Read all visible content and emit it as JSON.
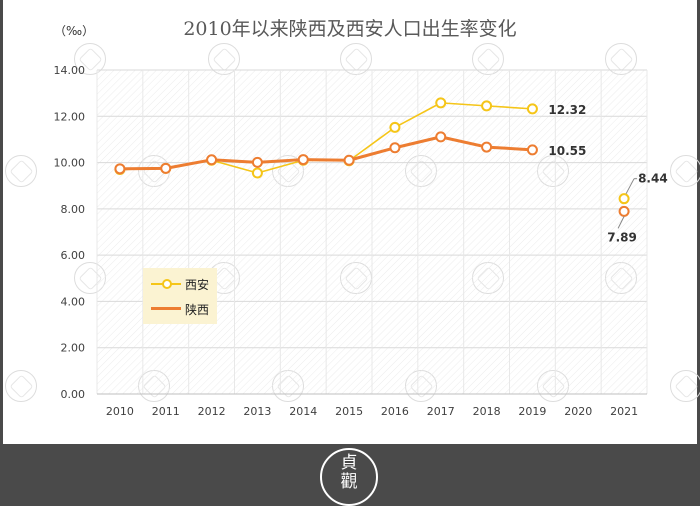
{
  "title": "2010年以来陕西及西安人口出生率变化",
  "unit": "（‰）",
  "logo_text": "貞\n觀",
  "chart_data": {
    "type": "line",
    "categories": [
      "2010",
      "2011",
      "2012",
      "2013",
      "2014",
      "2015",
      "2016",
      "2017",
      "2018",
      "2019",
      "2020",
      "2021"
    ],
    "ylim": [
      0,
      14
    ],
    "yticks": [
      "0.00",
      "2.00",
      "4.00",
      "6.00",
      "8.00",
      "10.00",
      "12.00",
      "14.00"
    ],
    "grid": true,
    "legend_position": "left-middle",
    "series": [
      {
        "name": "西安",
        "color": "#f5c518",
        "values": [
          9.7,
          9.75,
          10.1,
          9.55,
          10.1,
          10.08,
          11.52,
          12.58,
          12.45,
          12.32,
          null,
          8.44
        ]
      },
      {
        "name": "陕西",
        "color": "#ed7d31",
        "values": [
          9.73,
          9.75,
          10.12,
          10.01,
          10.13,
          10.1,
          10.64,
          11.11,
          10.67,
          10.55,
          null,
          7.89
        ]
      }
    ],
    "data_labels": [
      {
        "series": 0,
        "index": 9,
        "text": "12.32"
      },
      {
        "series": 1,
        "index": 9,
        "text": "10.55"
      },
      {
        "series": 0,
        "index": 11,
        "text": "8.44"
      },
      {
        "series": 1,
        "index": 11,
        "text": "7.89"
      }
    ]
  }
}
